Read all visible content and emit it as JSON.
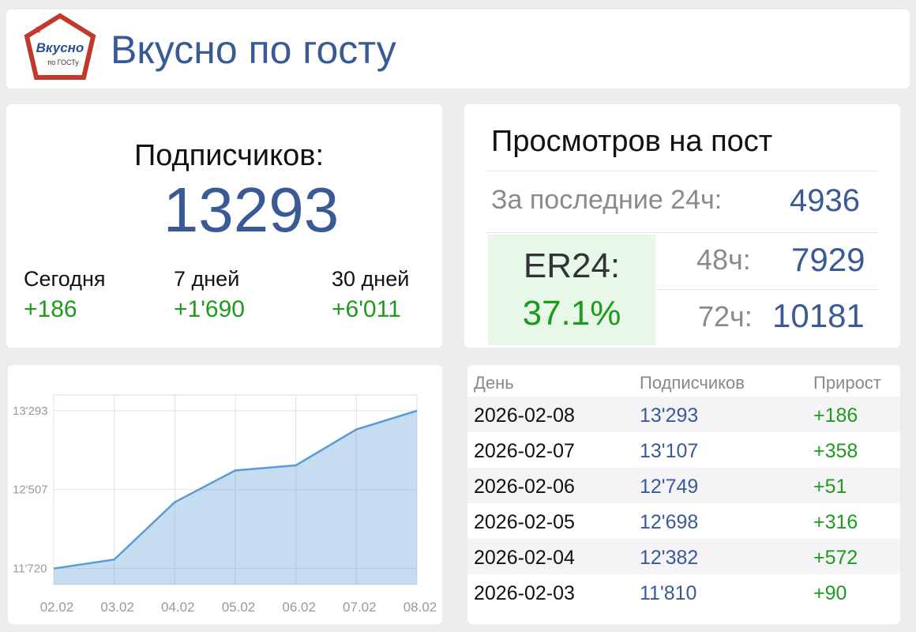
{
  "header": {
    "title": "Вкусно по госту",
    "logo": {
      "line1": "Вкусно",
      "line2": "по ГОСТу"
    }
  },
  "subscribers": {
    "label": "Подписчиков:",
    "count": "13293",
    "periods": [
      {
        "label": "Сегодня",
        "delta": "+186"
      },
      {
        "label": "7 дней",
        "delta": "+1'690"
      },
      {
        "label": "30 дней",
        "delta": "+6'011"
      }
    ]
  },
  "views": {
    "title": "Просмотров на пост",
    "last24": {
      "label": "За последние 24ч:",
      "value": "4936"
    },
    "er": {
      "label": "ER24:",
      "value": "37.1%"
    },
    "h48": {
      "label": "48ч:",
      "value": "7929"
    },
    "h72": {
      "label": "72ч:",
      "value": "10181"
    }
  },
  "chart": {
    "type": "area",
    "categories": [
      "02.02",
      "03.02",
      "04.02",
      "05.02",
      "06.02",
      "07.02",
      "08.02"
    ],
    "values": [
      11720,
      11810,
      12382,
      12698,
      12749,
      13107,
      13293
    ],
    "color": "#5b9bd5",
    "ylim": [
      11560,
      13450
    ],
    "yticks": [
      {
        "value": 11720,
        "label": "11'720"
      },
      {
        "value": 12507,
        "label": "12'507"
      },
      {
        "value": 13293,
        "label": "13'293"
      }
    ]
  },
  "table": {
    "headers": [
      "День",
      "Подписчиков",
      "Прирост"
    ],
    "rows": [
      [
        "2026-02-08",
        "13'293",
        "+186"
      ],
      [
        "2026-02-07",
        "13'107",
        "+358"
      ],
      [
        "2026-02-06",
        "12'749",
        "+51"
      ],
      [
        "2026-02-05",
        "12'698",
        "+316"
      ],
      [
        "2026-02-04",
        "12'382",
        "+572"
      ],
      [
        "2026-02-03",
        "11'810",
        "+90"
      ]
    ]
  }
}
